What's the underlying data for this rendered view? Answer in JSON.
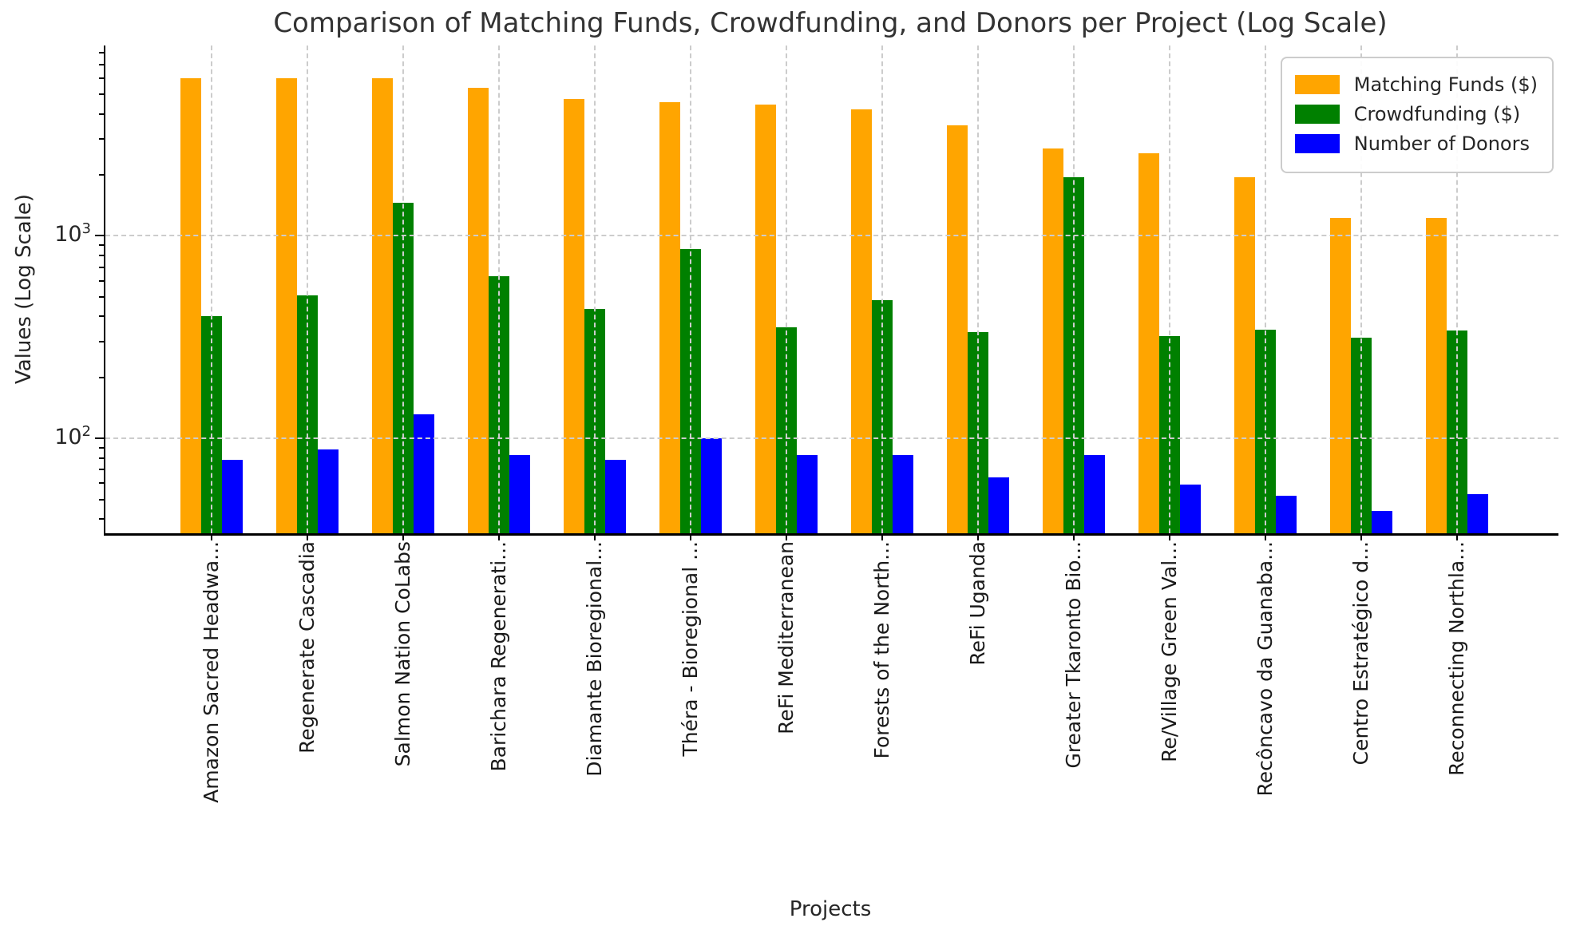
{
  "title": "Comparison of Matching Funds, Crowdfunding, and Donors per Project (Log Scale)",
  "axes": {
    "xlabel": "Projects",
    "ylabel": "Values (Log Scale)"
  },
  "y_axis": {
    "ticks": [
      {
        "base": "10",
        "exp": "3",
        "value": 1000
      },
      {
        "base": "10",
        "exp": "2",
        "value": 100
      }
    ]
  },
  "colors": {
    "matching": "#FFA500",
    "crowdfunding": "#008000",
    "donors": "#0000FF",
    "grid": "#cccccc",
    "text": "#262626"
  },
  "chart_data": {
    "type": "bar",
    "log_scale": true,
    "ylim": [
      34,
      8700
    ],
    "grid": true,
    "legend_position": "upper right",
    "title": "Comparison of Matching Funds, Crowdfunding, and Donors per Project (Log Scale)",
    "xlabel": "Projects",
    "ylabel": "Values (Log Scale)",
    "categories": [
      "Amazon Sacred Headwa...",
      "Regenerate Cascadia",
      "Salmon Nation CoLabs",
      "Barichara Regenerati...",
      "Diamante Bioregional...",
      "Théra - Bioregional ...",
      "ReFi Mediterranean",
      "Forests of the North...",
      "ReFi Uganda",
      "Greater Tkaronto Bio...",
      "Re/Village Green Val...",
      "Recôncavo da Guanaba...",
      "Centro Estratégico d...",
      "Reconnecting Northla..."
    ],
    "series": [
      {
        "name": "Matching Funds ($)",
        "color": "#FFA500",
        "values": [
          6000,
          6000,
          6000,
          5400,
          4750,
          4550,
          4450,
          4200,
          3500,
          2700,
          2550,
          1950,
          1220,
          1220
        ]
      },
      {
        "name": "Crowdfunding ($)",
        "color": "#008000",
        "values": [
          400,
          510,
          1450,
          630,
          435,
          860,
          355,
          480,
          335,
          1950,
          320,
          345,
          315,
          340
        ]
      },
      {
        "name": "Number of Donors",
        "color": "#0000FF",
        "values": [
          78,
          88,
          132,
          83,
          78,
          100,
          83,
          83,
          64,
          83,
          59,
          52,
          44,
          53
        ]
      }
    ]
  }
}
